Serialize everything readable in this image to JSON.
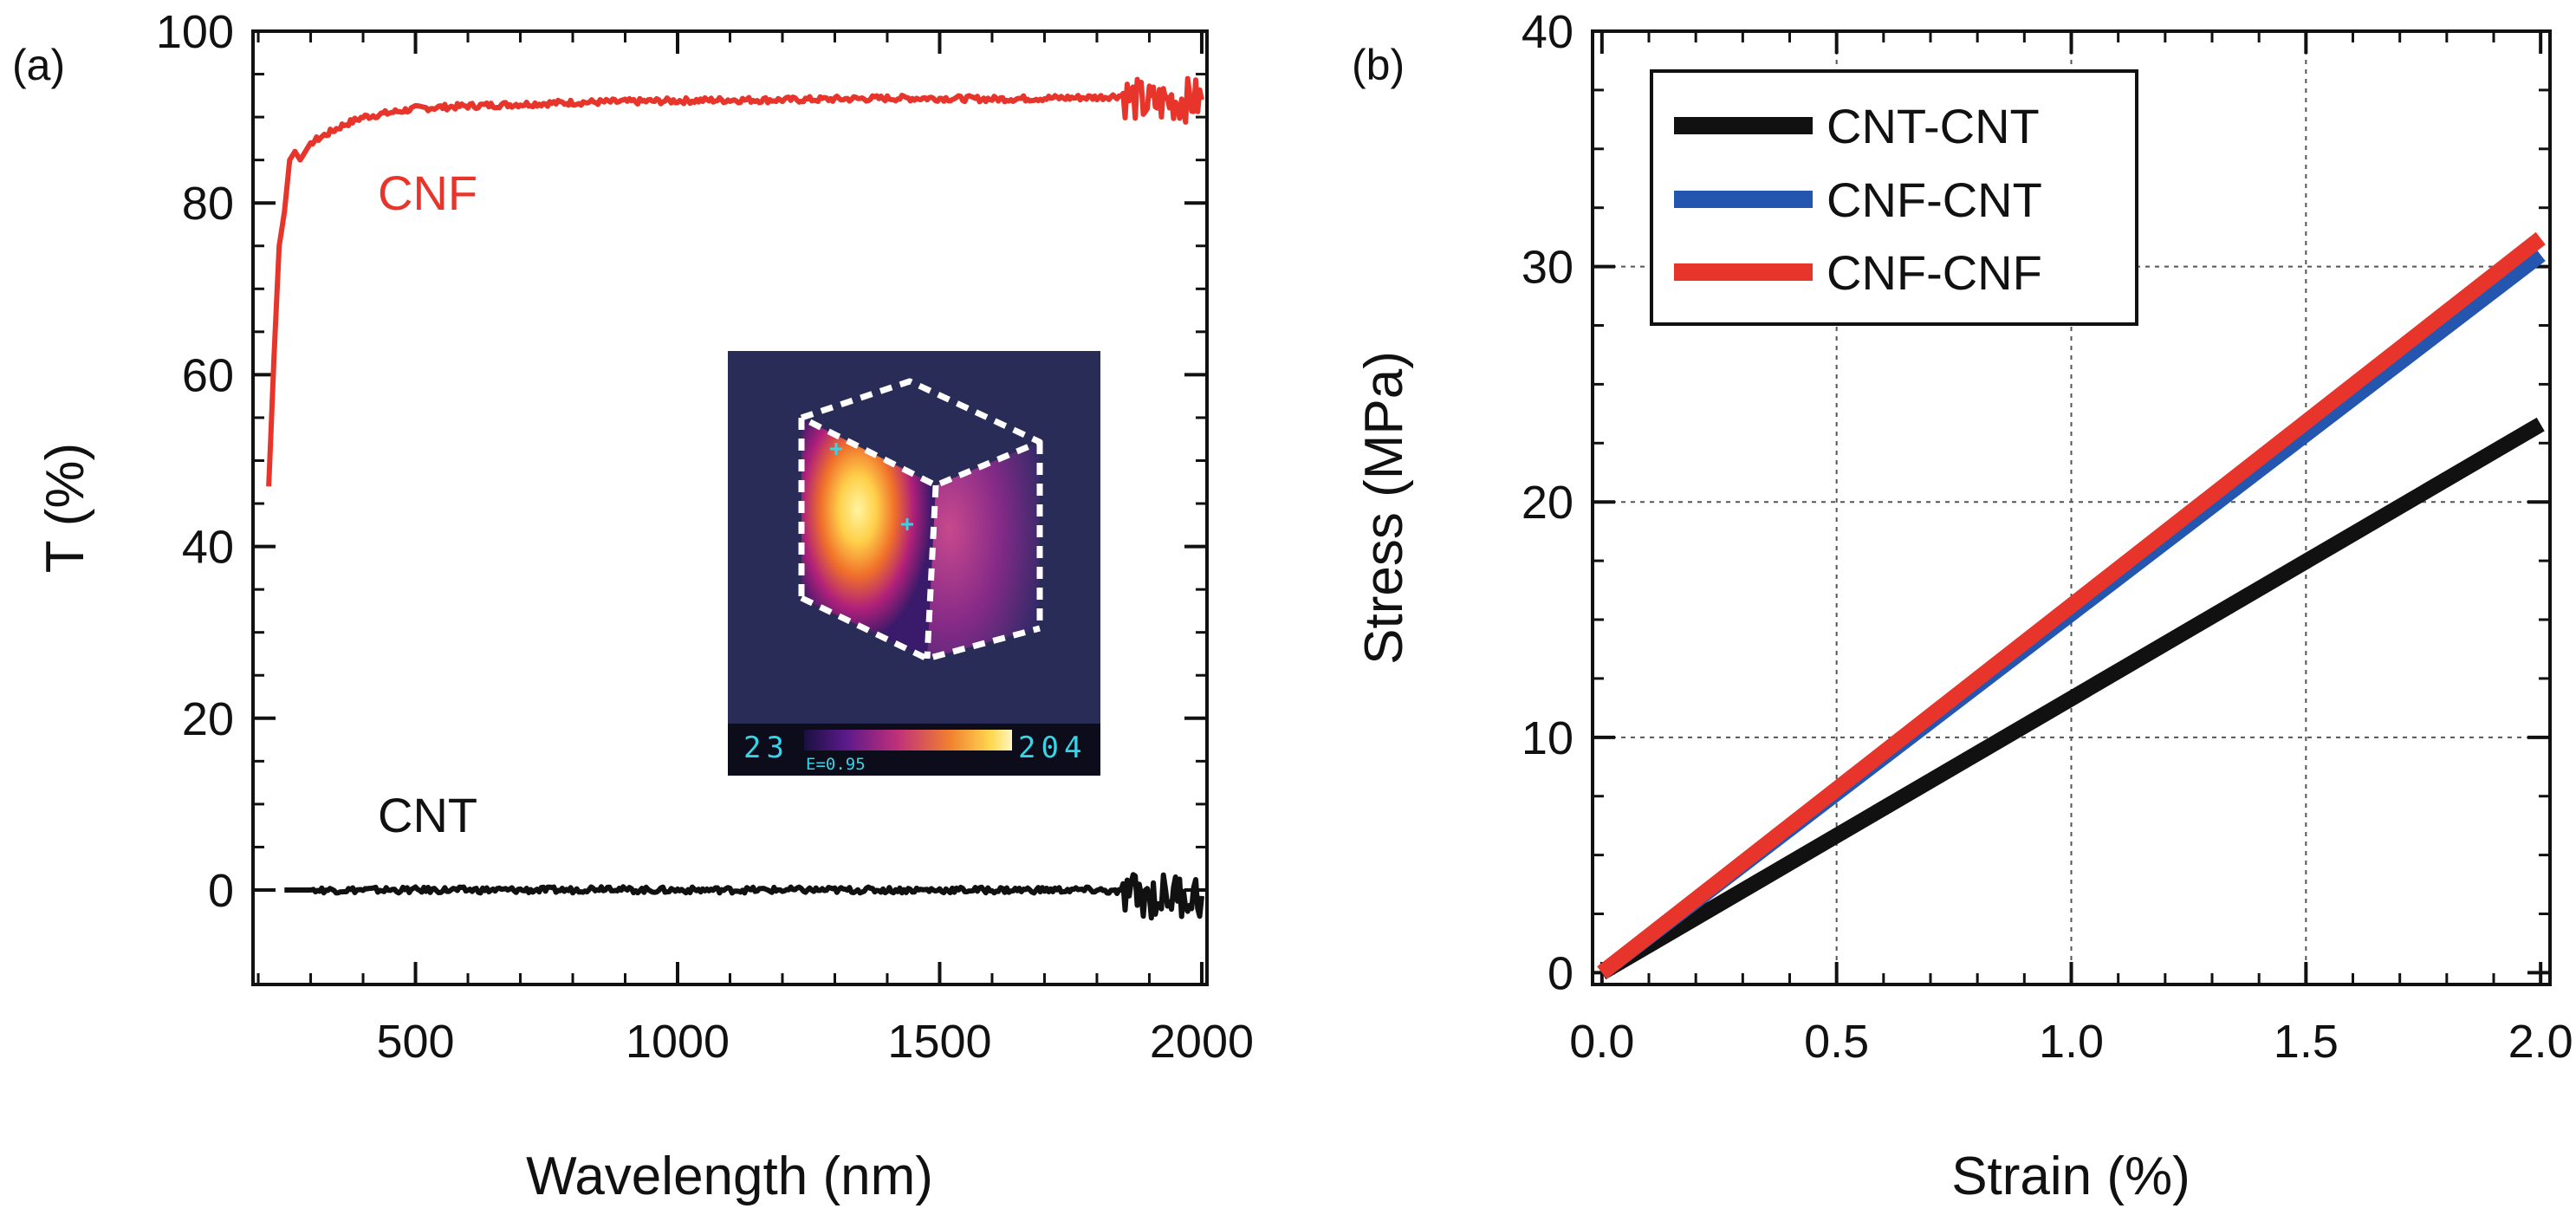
{
  "chart_data": [
    {
      "panel": "a",
      "panel_label": "(a)",
      "type": "line",
      "xlabel": "Wavelength (nm)",
      "ylabel": "T (%)",
      "xlim": [
        190,
        2010
      ],
      "ylim": [
        -11,
        100
      ],
      "xticks": [
        500,
        1000,
        1500,
        2000
      ],
      "xtick_labels": [
        "500",
        "1000",
        "1500",
        "2000"
      ],
      "yticks": [
        0,
        20,
        40,
        60,
        80,
        100
      ],
      "ytick_labels": [
        "0",
        "20",
        "40",
        "60",
        "80",
        "100"
      ],
      "grid": false,
      "series": [
        {
          "name": "CNF",
          "color": "#e8352b",
          "x": [
            220,
            230,
            240,
            250,
            260,
            270,
            280,
            300,
            330,
            360,
            400,
            450,
            500,
            600,
            700,
            800,
            900,
            1000,
            1100,
            1200,
            1300,
            1400,
            1500,
            1600,
            1700,
            1800,
            1850,
            1900,
            1950,
            2000
          ],
          "y": [
            47,
            62,
            75,
            79,
            85,
            86,
            85,
            87,
            88,
            89,
            90,
            90.5,
            91,
            91.3,
            91.5,
            91.7,
            91.8,
            91.9,
            92,
            92,
            92.1,
            92.2,
            92.2,
            92.1,
            92.2,
            92.3,
            92.5,
            91.5,
            92,
            92
          ],
          "noise_from_x": 1850
        },
        {
          "name": "CNT",
          "color": "#111111",
          "x": [
            250,
            400,
            600,
            800,
            870,
            900,
            1000,
            1200,
            1400,
            1600,
            1800,
            1850,
            1900,
            1950,
            2000
          ],
          "y": [
            0,
            0,
            0,
            0,
            0.3,
            0,
            0,
            0,
            0,
            0,
            0,
            -0.3,
            -0.8,
            -0.5,
            -0.7
          ],
          "noise_from_x": 1850
        }
      ],
      "annotations": [
        {
          "text": "CNF",
          "color": "#e8352b"
        },
        {
          "text": "CNT",
          "color": "#111111"
        }
      ],
      "inset": {
        "description": "thermal image",
        "scale_min": "23",
        "scale_max": "204",
        "emissivity": "E=0.95"
      }
    },
    {
      "panel": "b",
      "panel_label": "(b)",
      "type": "line",
      "xlabel": "Strain (%)",
      "ylabel": "Stress (MPa)",
      "xlim": [
        -0.02,
        2.02
      ],
      "ylim": [
        -0.5,
        40
      ],
      "xticks": [
        0,
        0.5,
        1.0,
        1.5,
        2.0
      ],
      "xtick_labels": [
        "0.0",
        "0.5",
        "1.0",
        "1.5",
        "2.0"
      ],
      "yticks": [
        0,
        10,
        20,
        30,
        40
      ],
      "ytick_labels": [
        "0",
        "10",
        "20",
        "30",
        "40"
      ],
      "grid": true,
      "legend_position": "top-left",
      "series": [
        {
          "name": "CNT-CNT",
          "color": "#111111",
          "x": [
            0,
            2.0
          ],
          "y": [
            0,
            23.3
          ]
        },
        {
          "name": "CNF-CNT",
          "color": "#2456b0",
          "x": [
            0,
            2.0
          ],
          "y": [
            0,
            30.5
          ]
        },
        {
          "name": "CNF-CNF",
          "color": "#e8352b",
          "x": [
            0,
            2.0
          ],
          "y": [
            0,
            31.2
          ]
        }
      ]
    }
  ]
}
